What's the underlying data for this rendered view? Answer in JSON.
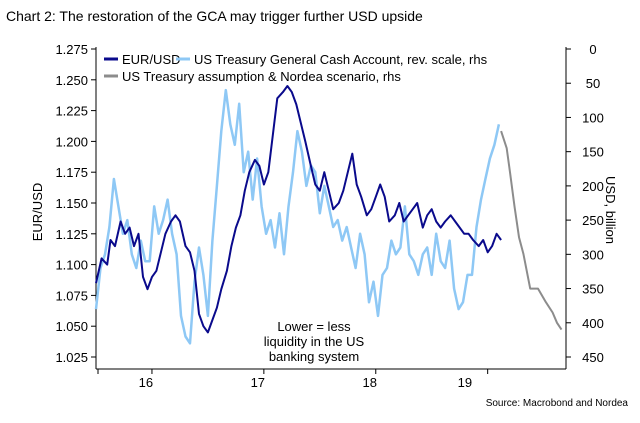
{
  "chart_data": {
    "type": "line",
    "title": "Chart 2: The restoration of the GCA may trigger further USD upside",
    "source": "Source: Macrobond and Nordea",
    "ylabel_left": "EUR/USD",
    "ylabel_right": "USD, billion",
    "right_axis_reversed": true,
    "ylim_left": [
      1.025,
      1.275
    ],
    "ylim_right": [
      0,
      450
    ],
    "xlim": [
      2015.5,
      2019.7
    ],
    "x_ticks": [
      2016.0,
      2017.0,
      2018.0,
      2019.0
    ],
    "x_tick_labels": [
      "16",
      "17",
      "18",
      "19"
    ],
    "y_left_ticks": [
      "1.025",
      "1.050",
      "1.075",
      "1.100",
      "1.125",
      "1.150",
      "1.175",
      "1.200",
      "1.225",
      "1.250",
      "1.275"
    ],
    "y_right_ticks": [
      "0",
      "50",
      "100",
      "150",
      "200",
      "250",
      "300",
      "350",
      "400",
      "450"
    ],
    "grid": false,
    "legend_position": "top-left",
    "annotation": [
      "Lower = less",
      "liquidity in the US",
      "banking system"
    ],
    "colors": {
      "eurusd": "#0a0a8c",
      "gca": "#8ec8f5",
      "nordea": "#8c8c8c"
    },
    "series": [
      {
        "name": "EUR/USD",
        "axis": "left",
        "x": [
          2015.5,
          2015.55,
          2015.6,
          2015.63,
          2015.67,
          2015.72,
          2015.76,
          2015.8,
          2015.84,
          2015.88,
          2015.92,
          2015.96,
          2016.0,
          2016.04,
          2016.08,
          2016.12,
          2016.17,
          2016.21,
          2016.25,
          2016.3,
          2016.34,
          2016.38,
          2016.42,
          2016.46,
          2016.5,
          2016.54,
          2016.58,
          2016.62,
          2016.67,
          2016.71,
          2016.75,
          2016.79,
          2016.83,
          2016.87,
          2016.92,
          2016.96,
          2017.0,
          2017.04,
          2017.08,
          2017.12,
          2017.17,
          2017.21,
          2017.25,
          2017.29,
          2017.33,
          2017.37,
          2017.42,
          2017.46,
          2017.5,
          2017.54,
          2017.58,
          2017.62,
          2017.67,
          2017.71,
          2017.75,
          2017.79,
          2017.83,
          2017.87,
          2017.92,
          2017.96,
          2018.0,
          2018.04,
          2018.08,
          2018.12,
          2018.17,
          2018.21,
          2018.25,
          2018.29,
          2018.33,
          2018.37,
          2018.42,
          2018.46,
          2018.5,
          2018.54,
          2018.58,
          2018.62,
          2018.67,
          2018.71,
          2018.75,
          2018.79,
          2018.83,
          2018.87,
          2018.92,
          2018.96,
          2019.0,
          2019.04,
          2019.08,
          2019.12
        ],
        "values": [
          1.085,
          1.105,
          1.1,
          1.12,
          1.115,
          1.135,
          1.125,
          1.13,
          1.115,
          1.125,
          1.09,
          1.08,
          1.09,
          1.095,
          1.11,
          1.125,
          1.135,
          1.14,
          1.135,
          1.115,
          1.11,
          1.095,
          1.06,
          1.05,
          1.045,
          1.055,
          1.065,
          1.08,
          1.095,
          1.115,
          1.13,
          1.14,
          1.16,
          1.175,
          1.185,
          1.18,
          1.165,
          1.175,
          1.205,
          1.235,
          1.24,
          1.245,
          1.24,
          1.23,
          1.215,
          1.2,
          1.18,
          1.165,
          1.16,
          1.175,
          1.16,
          1.145,
          1.15,
          1.16,
          1.175,
          1.19,
          1.165,
          1.155,
          1.14,
          1.145,
          1.155,
          1.165,
          1.155,
          1.135,
          1.14,
          1.15,
          1.135,
          1.14,
          1.145,
          1.15,
          1.13,
          1.14,
          1.145,
          1.135,
          1.13,
          1.135,
          1.14,
          1.135,
          1.13,
          1.125,
          1.125,
          1.12,
          1.115,
          1.12,
          1.11,
          1.115,
          1.125,
          1.12
        ]
      },
      {
        "name": "US Treasury General Cash Account, rev. scale, rhs",
        "axis": "right",
        "x": [
          2015.5,
          2015.54,
          2015.58,
          2015.62,
          2015.66,
          2015.7,
          2015.74,
          2015.78,
          2015.82,
          2015.86,
          2015.9,
          2015.94,
          2015.98,
          2016.02,
          2016.06,
          2016.1,
          2016.14,
          2016.18,
          2016.22,
          2016.26,
          2016.3,
          2016.34,
          2016.38,
          2016.42,
          2016.46,
          2016.5,
          2016.54,
          2016.58,
          2016.62,
          2016.66,
          2016.7,
          2016.74,
          2016.78,
          2016.82,
          2016.86,
          2016.9,
          2016.94,
          2016.98,
          2017.02,
          2017.06,
          2017.1,
          2017.14,
          2017.18,
          2017.22,
          2017.26,
          2017.3,
          2017.34,
          2017.38,
          2017.42,
          2017.46,
          2017.5,
          2017.54,
          2017.58,
          2017.62,
          2017.66,
          2017.7,
          2017.74,
          2017.78,
          2017.82,
          2017.86,
          2017.9,
          2017.94,
          2017.98,
          2018.02,
          2018.06,
          2018.1,
          2018.14,
          2018.18,
          2018.22,
          2018.26,
          2018.3,
          2018.34,
          2018.38,
          2018.42,
          2018.46,
          2018.5,
          2018.54,
          2018.58,
          2018.62,
          2018.66,
          2018.7,
          2018.74,
          2018.78,
          2018.82,
          2018.86,
          2018.9,
          2018.94,
          2018.98,
          2019.02,
          2019.06,
          2019.1
        ],
        "values": [
          380,
          320,
          300,
          260,
          190,
          230,
          270,
          250,
          300,
          320,
          280,
          310,
          310,
          230,
          270,
          250,
          220,
          270,
          300,
          390,
          420,
          430,
          340,
          290,
          330,
          390,
          280,
          200,
          120,
          60,
          110,
          140,
          80,
          180,
          150,
          220,
          160,
          230,
          270,
          250,
          290,
          240,
          300,
          230,
          180,
          120,
          150,
          200,
          170,
          180,
          240,
          200,
          230,
          260,
          250,
          280,
          260,
          290,
          320,
          270,
          300,
          370,
          340,
          390,
          330,
          320,
          280,
          300,
          290,
          230,
          300,
          310,
          330,
          300,
          290,
          330,
          270,
          310,
          320,
          280,
          350,
          380,
          370,
          330,
          330,
          260,
          220,
          190,
          160,
          140,
          110
        ]
      },
      {
        "name": "US Treasury assumption & Nordea scenario, rhs",
        "axis": "right",
        "x": [
          2019.12,
          2019.17,
          2019.2,
          2019.24,
          2019.28,
          2019.32,
          2019.38,
          2019.45,
          2019.52,
          2019.58,
          2019.62,
          2019.66
        ],
        "values": [
          120,
          145,
          180,
          230,
          275,
          300,
          350,
          350,
          370,
          385,
          400,
          410
        ]
      }
    ]
  }
}
